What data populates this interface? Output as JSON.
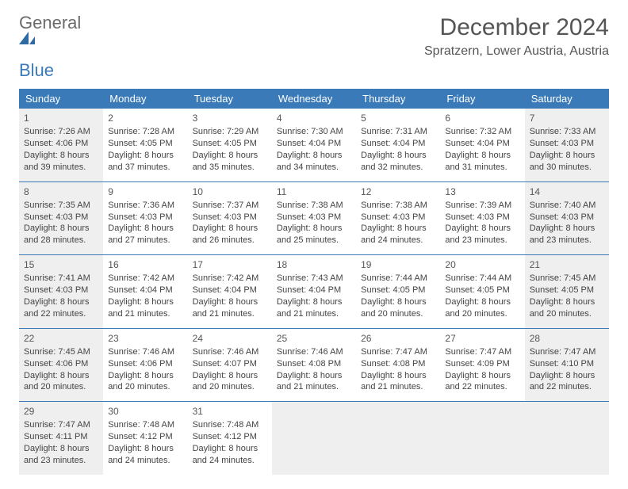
{
  "logo": {
    "word1": "General",
    "word2": "Blue"
  },
  "title": "December 2024",
  "location": "Spratzern, Lower Austria, Austria",
  "colors": {
    "header_bg": "#3a7ab8",
    "header_text": "#ffffff",
    "cell_border": "#3a7ab8",
    "shaded_bg": "#efefef",
    "text": "#444444",
    "title_text": "#555555"
  },
  "day_headers": [
    "Sunday",
    "Monday",
    "Tuesday",
    "Wednesday",
    "Thursday",
    "Friday",
    "Saturday"
  ],
  "weeks": [
    [
      {
        "n": "1",
        "shaded": true,
        "sunrise": "Sunrise: 7:26 AM",
        "sunset": "Sunset: 4:06 PM",
        "day1": "Daylight: 8 hours",
        "day2": "and 39 minutes."
      },
      {
        "n": "2",
        "sunrise": "Sunrise: 7:28 AM",
        "sunset": "Sunset: 4:05 PM",
        "day1": "Daylight: 8 hours",
        "day2": "and 37 minutes."
      },
      {
        "n": "3",
        "sunrise": "Sunrise: 7:29 AM",
        "sunset": "Sunset: 4:05 PM",
        "day1": "Daylight: 8 hours",
        "day2": "and 35 minutes."
      },
      {
        "n": "4",
        "sunrise": "Sunrise: 7:30 AM",
        "sunset": "Sunset: 4:04 PM",
        "day1": "Daylight: 8 hours",
        "day2": "and 34 minutes."
      },
      {
        "n": "5",
        "sunrise": "Sunrise: 7:31 AM",
        "sunset": "Sunset: 4:04 PM",
        "day1": "Daylight: 8 hours",
        "day2": "and 32 minutes."
      },
      {
        "n": "6",
        "sunrise": "Sunrise: 7:32 AM",
        "sunset": "Sunset: 4:04 PM",
        "day1": "Daylight: 8 hours",
        "day2": "and 31 minutes."
      },
      {
        "n": "7",
        "shaded": true,
        "sunrise": "Sunrise: 7:33 AM",
        "sunset": "Sunset: 4:03 PM",
        "day1": "Daylight: 8 hours",
        "day2": "and 30 minutes."
      }
    ],
    [
      {
        "n": "8",
        "shaded": true,
        "sunrise": "Sunrise: 7:35 AM",
        "sunset": "Sunset: 4:03 PM",
        "day1": "Daylight: 8 hours",
        "day2": "and 28 minutes."
      },
      {
        "n": "9",
        "sunrise": "Sunrise: 7:36 AM",
        "sunset": "Sunset: 4:03 PM",
        "day1": "Daylight: 8 hours",
        "day2": "and 27 minutes."
      },
      {
        "n": "10",
        "sunrise": "Sunrise: 7:37 AM",
        "sunset": "Sunset: 4:03 PM",
        "day1": "Daylight: 8 hours",
        "day2": "and 26 minutes."
      },
      {
        "n": "11",
        "sunrise": "Sunrise: 7:38 AM",
        "sunset": "Sunset: 4:03 PM",
        "day1": "Daylight: 8 hours",
        "day2": "and 25 minutes."
      },
      {
        "n": "12",
        "sunrise": "Sunrise: 7:38 AM",
        "sunset": "Sunset: 4:03 PM",
        "day1": "Daylight: 8 hours",
        "day2": "and 24 minutes."
      },
      {
        "n": "13",
        "sunrise": "Sunrise: 7:39 AM",
        "sunset": "Sunset: 4:03 PM",
        "day1": "Daylight: 8 hours",
        "day2": "and 23 minutes."
      },
      {
        "n": "14",
        "shaded": true,
        "sunrise": "Sunrise: 7:40 AM",
        "sunset": "Sunset: 4:03 PM",
        "day1": "Daylight: 8 hours",
        "day2": "and 23 minutes."
      }
    ],
    [
      {
        "n": "15",
        "shaded": true,
        "sunrise": "Sunrise: 7:41 AM",
        "sunset": "Sunset: 4:03 PM",
        "day1": "Daylight: 8 hours",
        "day2": "and 22 minutes."
      },
      {
        "n": "16",
        "sunrise": "Sunrise: 7:42 AM",
        "sunset": "Sunset: 4:04 PM",
        "day1": "Daylight: 8 hours",
        "day2": "and 21 minutes."
      },
      {
        "n": "17",
        "sunrise": "Sunrise: 7:42 AM",
        "sunset": "Sunset: 4:04 PM",
        "day1": "Daylight: 8 hours",
        "day2": "and 21 minutes."
      },
      {
        "n": "18",
        "sunrise": "Sunrise: 7:43 AM",
        "sunset": "Sunset: 4:04 PM",
        "day1": "Daylight: 8 hours",
        "day2": "and 21 minutes."
      },
      {
        "n": "19",
        "sunrise": "Sunrise: 7:44 AM",
        "sunset": "Sunset: 4:05 PM",
        "day1": "Daylight: 8 hours",
        "day2": "and 20 minutes."
      },
      {
        "n": "20",
        "sunrise": "Sunrise: 7:44 AM",
        "sunset": "Sunset: 4:05 PM",
        "day1": "Daylight: 8 hours",
        "day2": "and 20 minutes."
      },
      {
        "n": "21",
        "shaded": true,
        "sunrise": "Sunrise: 7:45 AM",
        "sunset": "Sunset: 4:05 PM",
        "day1": "Daylight: 8 hours",
        "day2": "and 20 minutes."
      }
    ],
    [
      {
        "n": "22",
        "shaded": true,
        "sunrise": "Sunrise: 7:45 AM",
        "sunset": "Sunset: 4:06 PM",
        "day1": "Daylight: 8 hours",
        "day2": "and 20 minutes."
      },
      {
        "n": "23",
        "sunrise": "Sunrise: 7:46 AM",
        "sunset": "Sunset: 4:06 PM",
        "day1": "Daylight: 8 hours",
        "day2": "and 20 minutes."
      },
      {
        "n": "24",
        "sunrise": "Sunrise: 7:46 AM",
        "sunset": "Sunset: 4:07 PM",
        "day1": "Daylight: 8 hours",
        "day2": "and 20 minutes."
      },
      {
        "n": "25",
        "sunrise": "Sunrise: 7:46 AM",
        "sunset": "Sunset: 4:08 PM",
        "day1": "Daylight: 8 hours",
        "day2": "and 21 minutes."
      },
      {
        "n": "26",
        "sunrise": "Sunrise: 7:47 AM",
        "sunset": "Sunset: 4:08 PM",
        "day1": "Daylight: 8 hours",
        "day2": "and 21 minutes."
      },
      {
        "n": "27",
        "sunrise": "Sunrise: 7:47 AM",
        "sunset": "Sunset: 4:09 PM",
        "day1": "Daylight: 8 hours",
        "day2": "and 22 minutes."
      },
      {
        "n": "28",
        "shaded": true,
        "sunrise": "Sunrise: 7:47 AM",
        "sunset": "Sunset: 4:10 PM",
        "day1": "Daylight: 8 hours",
        "day2": "and 22 minutes."
      }
    ],
    [
      {
        "n": "29",
        "shaded": true,
        "sunrise": "Sunrise: 7:47 AM",
        "sunset": "Sunset: 4:11 PM",
        "day1": "Daylight: 8 hours",
        "day2": "and 23 minutes."
      },
      {
        "n": "30",
        "sunrise": "Sunrise: 7:48 AM",
        "sunset": "Sunset: 4:12 PM",
        "day1": "Daylight: 8 hours",
        "day2": "and 24 minutes."
      },
      {
        "n": "31",
        "sunrise": "Sunrise: 7:48 AM",
        "sunset": "Sunset: 4:12 PM",
        "day1": "Daylight: 8 hours",
        "day2": "and 24 minutes."
      },
      {
        "empty": true
      },
      {
        "empty": true
      },
      {
        "empty": true
      },
      {
        "empty": true
      }
    ]
  ]
}
